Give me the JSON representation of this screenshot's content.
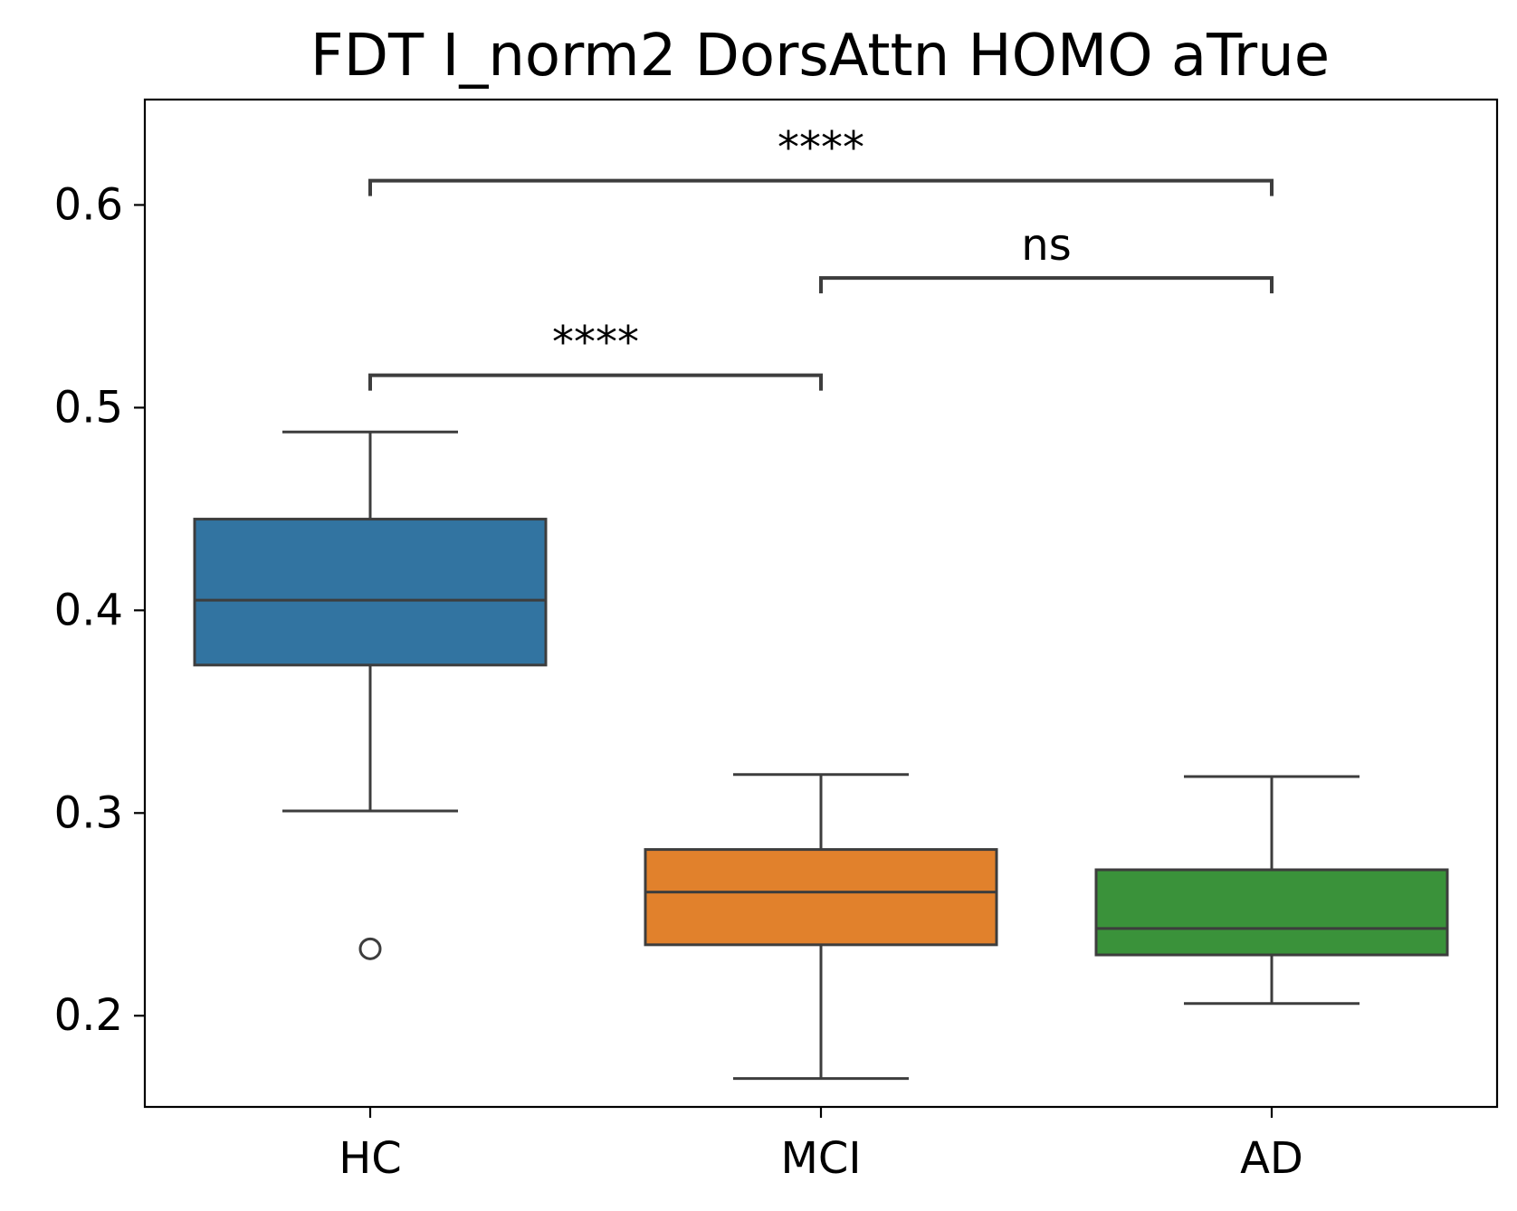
{
  "chart_data": {
    "type": "box",
    "title": "FDT I_norm2 DorsAttn HOMO aTrue",
    "xlabel": "",
    "ylabel": "",
    "ylim": [
      0.155,
      0.652
    ],
    "yticks": [
      0.2,
      0.3,
      0.4,
      0.5,
      0.6
    ],
    "ytick_labels": [
      "0.2",
      "0.3",
      "0.4",
      "0.5",
      "0.6"
    ],
    "grid": false,
    "categories": [
      "HC",
      "MCI",
      "AD"
    ],
    "series": [
      {
        "category": "HC",
        "color": "#3274a1",
        "whisker_low": 0.301,
        "q1": 0.373,
        "median": 0.405,
        "q3": 0.445,
        "whisker_high": 0.488,
        "outliers": [
          0.233
        ]
      },
      {
        "category": "MCI",
        "color": "#e1812c",
        "whisker_low": 0.169,
        "q1": 0.235,
        "median": 0.261,
        "q3": 0.282,
        "whisker_high": 0.319,
        "outliers": []
      },
      {
        "category": "AD",
        "color": "#3a923a",
        "whisker_low": 0.206,
        "q1": 0.23,
        "median": 0.243,
        "q3": 0.272,
        "whisker_high": 0.318,
        "outliers": []
      }
    ],
    "annotations": [
      {
        "from": 0,
        "to": 1,
        "y": 0.516,
        "label": "****"
      },
      {
        "from": 1,
        "to": 2,
        "y": 0.564,
        "label": "ns"
      },
      {
        "from": 0,
        "to": 2,
        "y": 0.612,
        "label": "****"
      }
    ]
  }
}
